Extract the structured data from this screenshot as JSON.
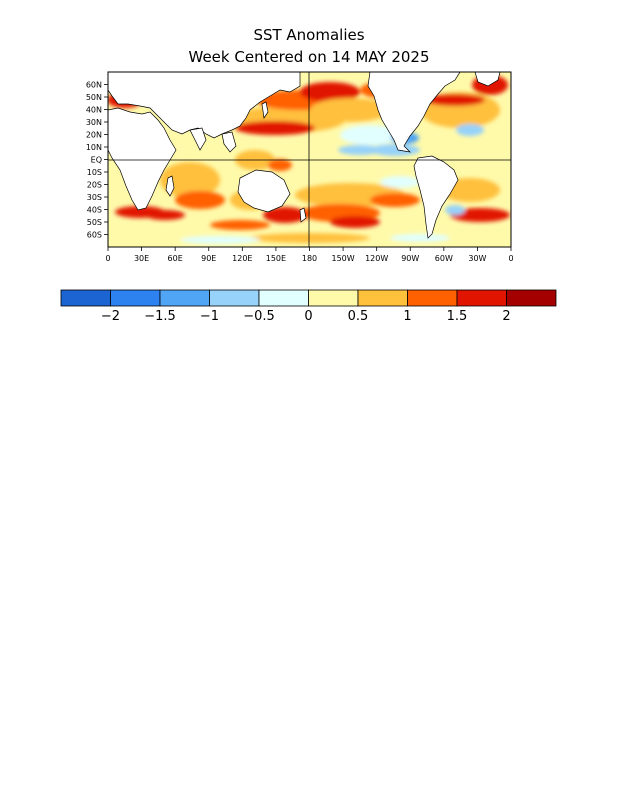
{
  "title": "SST Anomalies",
  "subtitle": "Week Centered on 14 MAY 2025",
  "lat_labels": [
    "60N",
    "50N",
    "40N",
    "30N",
    "20N",
    "10N",
    "EQ",
    "10S",
    "20S",
    "30S",
    "40S",
    "50S",
    "60S"
  ],
  "lon_labels": [
    "0",
    "30E",
    "60E",
    "90E",
    "120E",
    "150E",
    "180",
    "150W",
    "120W",
    "90W",
    "60W",
    "30W",
    "0"
  ],
  "colorbar": {
    "colors": [
      "#1c64d2",
      "#2d82f0",
      "#50a5f5",
      "#96d2fa",
      "#e1ffff",
      "#fffaaa",
      "#ffc03c",
      "#ff6000",
      "#e11400",
      "#a50000"
    ],
    "tick_labels": [
      "−2",
      "−1.5",
      "−1",
      "−0.5",
      "0",
      "0.5",
      "1",
      "1.5",
      "2"
    ]
  },
  "palette": {
    "land": "#ffffff",
    "ocean_base": "#fffaaa"
  }
}
